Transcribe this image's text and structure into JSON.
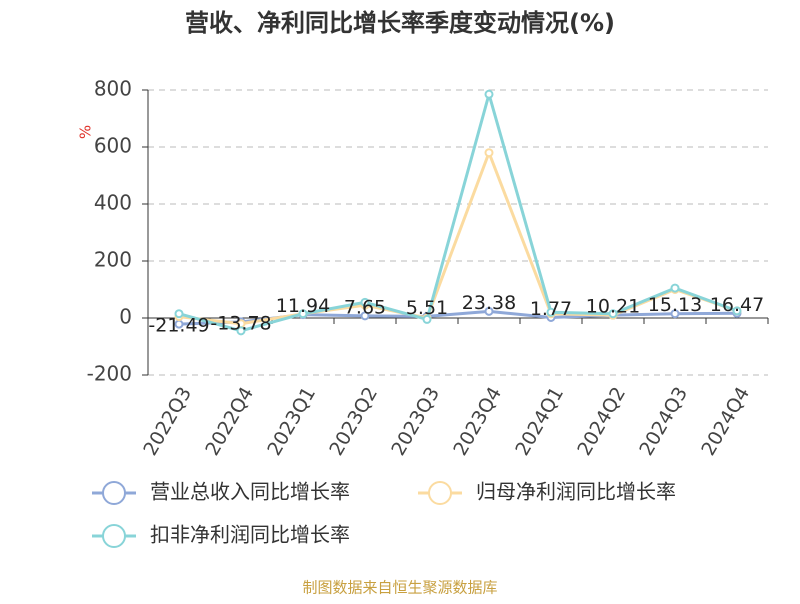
{
  "chart_data": {
    "type": "line",
    "title": "营收、净利同比增长率季度变动情况(%)",
    "y_label": "%",
    "source": "制图数据来自恒生聚源数据库",
    "categories": [
      "2022Q3",
      "2022Q4",
      "2023Q1",
      "2023Q2",
      "2023Q3",
      "2023Q4",
      "2024Q1",
      "2024Q2",
      "2024Q3",
      "2024Q4"
    ],
    "series": [
      {
        "name": "营业总收入同比增长率",
        "color": "#8fa8d8",
        "values": [
          -21.49,
          -13.78,
          11.94,
          7.65,
          5.51,
          23.38,
          1.77,
          10.21,
          15.13,
          16.47
        ],
        "show_labels": true
      },
      {
        "name": "归母净利润同比增长率",
        "color": "#fbdba0",
        "values": [
          5,
          -20,
          15,
          45,
          0,
          580,
          15,
          10,
          100,
          25
        ]
      },
      {
        "name": "扣非净利润同比增长率",
        "color": "#88d4d8",
        "values": [
          15,
          -45,
          15,
          55,
          -5,
          785,
          20,
          15,
          105,
          25
        ]
      }
    ],
    "ylim": [
      -200,
      800
    ],
    "yticks": [
      -200,
      0,
      200,
      400,
      600,
      800
    ],
    "grid": true
  }
}
